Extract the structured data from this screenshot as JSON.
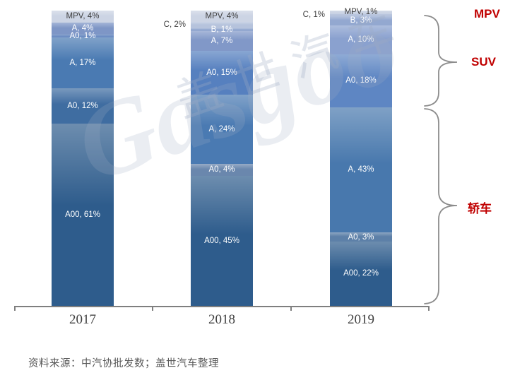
{
  "chart_data": {
    "type": "bar",
    "stacked": true,
    "unit": "%",
    "orientation": "vertical",
    "grid": false,
    "categories": [
      "2017",
      "2018",
      "2019"
    ],
    "bars": [
      {
        "category": "2017",
        "segments": [
          {
            "series": "MPV",
            "group": "MPV",
            "label": "MPV, 4%",
            "value": 4,
            "color": "#ccd4e4",
            "text_color": "#3f3f3f"
          },
          {
            "series": "A",
            "group": "SUV",
            "label": "A, 4%",
            "value": 4,
            "color": "#7e96c6",
            "text_color": "#ffffff"
          },
          {
            "series": "A0",
            "group": "SUV",
            "label": "A0, 1%",
            "value": 1,
            "color": "#6d8dc3",
            "text_color": "#ffffff"
          },
          {
            "series": "A",
            "group": "轿车",
            "label": "A, 17%",
            "value": 17,
            "color": "#4a7ab2",
            "text_color": "#ffffff"
          },
          {
            "series": "A0",
            "group": "轿车",
            "label": "A0, 12%",
            "value": 12,
            "color": "#3f6da1",
            "text_color": "#ffffff"
          },
          {
            "series": "A00",
            "group": "轿车",
            "label": "A00, 61%",
            "value": 61,
            "color": "#2e5c8c",
            "text_color": "#ffffff"
          }
        ]
      },
      {
        "category": "2018",
        "segments": [
          {
            "series": "MPV",
            "group": "MPV",
            "label": "MPV, 4%",
            "value": 4,
            "color": "#ccd4e4",
            "text_color": "#3f3f3f"
          },
          {
            "series": "C",
            "group": "SUV",
            "label": "C, 2%",
            "value": 2,
            "color": "#b6c3dc",
            "text_color": "#404040",
            "label_outside": true
          },
          {
            "series": "B",
            "group": "SUV",
            "label": "B, 1%",
            "value": 1,
            "color": "#93a8d0",
            "text_color": "#ffffff"
          },
          {
            "series": "A",
            "group": "SUV",
            "label": "A, 7%",
            "value": 7,
            "color": "#8198c8",
            "text_color": "#ffffff"
          },
          {
            "series": "A0",
            "group": "SUV",
            "label": "A0, 15%",
            "value": 15,
            "color": "#5680bf",
            "text_color": "#ffffff"
          },
          {
            "series": "A",
            "group": "轿车",
            "label": "A, 24%",
            "value": 24,
            "color": "#4a7ab2",
            "text_color": "#ffffff"
          },
          {
            "series": "A0",
            "group": "轿车",
            "label": "A0, 4%",
            "value": 4,
            "color": "#6a87ad",
            "text_color": "#ffffff"
          },
          {
            "series": "A00",
            "group": "轿车",
            "label": "A00, 45%",
            "value": 45,
            "color": "#2e5c8c",
            "text_color": "#ffffff"
          }
        ]
      },
      {
        "category": "2019",
        "segments": [
          {
            "series": "MPV",
            "group": "MPV",
            "label": "MPV, 1%",
            "value": 1,
            "color": "#ccd4e4",
            "text_color": "#3f3f3f"
          },
          {
            "series": "C",
            "group": "SUV",
            "label": "C, 1%",
            "value": 1,
            "color": "#b6c3dc",
            "text_color": "#404040",
            "label_outside": true
          },
          {
            "series": "B",
            "group": "SUV",
            "label": "B, 3%",
            "value": 3,
            "color": "#93a8d0",
            "text_color": "#ffffff"
          },
          {
            "series": "A",
            "group": "SUV",
            "label": "A, 10%",
            "value": 10,
            "color": "#8aa1cf",
            "text_color": "#ffffff"
          },
          {
            "series": "A0",
            "group": "SUV",
            "label": "A0, 18%",
            "value": 18,
            "color": "#5e86c3",
            "text_color": "#ffffff"
          },
          {
            "series": "A",
            "group": "轿车",
            "label": "A, 43%",
            "value": 43,
            "color": "#4878ad",
            "text_color": "#ffffff"
          },
          {
            "series": "A0",
            "group": "轿车",
            "label": "A0, 3%",
            "value": 3,
            "color": "#5d80a8",
            "text_color": "#ffffff"
          },
          {
            "series": "A00",
            "group": "轿车",
            "label": "A00, 22%",
            "value": 22,
            "color": "#2e5c8c",
            "text_color": "#ffffff"
          }
        ]
      }
    ],
    "group_labels": [
      {
        "id": "mpv",
        "text": "MPV"
      },
      {
        "id": "suv",
        "text": "SUV"
      },
      {
        "id": "sedan",
        "text": "轿车"
      }
    ],
    "group_label_color": "#c00000",
    "axis_color": "#7f7f7f",
    "legend_position": "right-braces"
  },
  "watermark": {
    "logo_text": "Gasgoo",
    "cn_text": "盖世汽车"
  },
  "source_note": "资料来源：中汽协批发数；盖世汽车整理"
}
